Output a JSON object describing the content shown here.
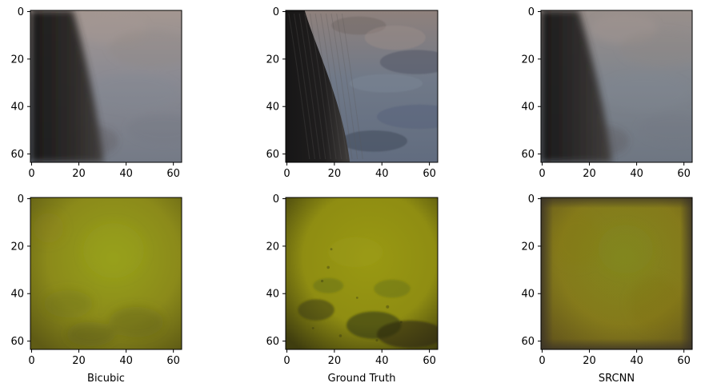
{
  "chart_data": [
    {
      "type": "heatmap",
      "title": "",
      "xlabel": "",
      "ylabel": "",
      "xlim": [
        -0.5,
        63.5
      ],
      "ylim": [
        63.5,
        -0.5
      ],
      "x_ticks": [
        0,
        20,
        40,
        60
      ],
      "y_ticks": [
        0,
        20,
        40,
        60
      ],
      "grid": false,
      "image": {
        "description_colors": [
          "#3e3b39",
          "#2b2826",
          "#6e6765",
          "#8c8582",
          "#7b8290",
          "#4a4846"
        ],
        "edge_shape": "soft-dark-diagonal",
        "split_top": 18,
        "split_bottom": 31,
        "dark_color": "#2b2826",
        "light_color": "#8a8a92",
        "top_tint": "#a49791",
        "bottom_tint": "#747a86"
      }
    },
    {
      "type": "heatmap",
      "title": "",
      "xlabel": "",
      "ylabel": "",
      "xlim": [
        -0.5,
        63.5
      ],
      "ylim": [
        63.5,
        -0.5
      ],
      "x_ticks": [
        0,
        20,
        40,
        60
      ],
      "y_ticks": [
        0,
        20,
        40,
        60
      ],
      "grid": false,
      "image": {
        "description_colors": [
          "#2c2827",
          "#181616",
          "#6b6464",
          "#8b8989",
          "#5f6779",
          "#3f3e3e"
        ],
        "edge_shape": "sharp-dark-diagonal",
        "split_top": 8,
        "split_bottom": 27,
        "dark_color": "#1f1d1d",
        "light_color": "#707988",
        "top_tint": "#8f817c",
        "bottom_tint": "#616c7f"
      }
    },
    {
      "type": "heatmap",
      "title": "",
      "xlabel": "",
      "ylabel": "",
      "xlim": [
        -0.5,
        63.5
      ],
      "ylim": [
        63.5,
        -0.5
      ],
      "x_ticks": [
        0,
        20,
        40,
        60
      ],
      "y_ticks": [
        0,
        20,
        40,
        60
      ],
      "grid": false,
      "image": {
        "description_colors": [
          "#34302f",
          "#292625",
          "#7a7474",
          "#8c8888",
          "#767f88",
          "#3e3c3b"
        ],
        "edge_shape": "soft-dark-diagonal",
        "split_top": 16,
        "split_bottom": 30,
        "dark_color": "#2e2b2a",
        "light_color": "#80858d",
        "top_tint": "#998f8b",
        "bottom_tint": "#6e7682"
      }
    },
    {
      "type": "heatmap",
      "title": "",
      "xlabel": "Bicubic",
      "ylabel": "",
      "xlim": [
        -0.5,
        63.5
      ],
      "ylim": [
        63.5,
        -0.5
      ],
      "x_ticks": [
        0,
        20,
        40,
        60
      ],
      "y_ticks": [
        0,
        20,
        40,
        60
      ],
      "grid": false,
      "image": {
        "description_colors": [
          "#8f8b1c",
          "#9ba418",
          "#7f7d18",
          "#6a6617",
          "#5d5a16"
        ],
        "base_color": "#8b8a1a",
        "center_color": "#97a11a",
        "dark_color": "#5f5b15",
        "spot_color": "#6d7a1c"
      }
    },
    {
      "type": "heatmap",
      "title": "",
      "xlabel": "Ground Truth",
      "ylabel": "",
      "xlim": [
        -0.5,
        63.5
      ],
      "ylim": [
        63.5,
        -0.5
      ],
      "x_ticks": [
        0,
        20,
        40,
        60
      ],
      "y_ticks": [
        0,
        20,
        40,
        60
      ],
      "grid": false,
      "image": {
        "description_colors": [
          "#9a9214",
          "#878312",
          "#5b6114",
          "#2d2e0f",
          "#75720f"
        ],
        "base_color": "#8f8d12",
        "center_color": "#999912",
        "dark_color": "#3f3d0f",
        "spot_color": "#5a6915"
      }
    },
    {
      "type": "heatmap",
      "title": "",
      "xlabel": "SRCNN",
      "ylabel": "",
      "xlim": [
        -0.5,
        63.5
      ],
      "ylim": [
        63.5,
        -0.5
      ],
      "x_ticks": [
        0,
        20,
        40,
        60
      ],
      "y_ticks": [
        0,
        20,
        40,
        60
      ],
      "grid": false,
      "image": {
        "description_colors": [
          "#969b1b",
          "#a89d12",
          "#8a7914",
          "#5a4d26",
          "#2f2a25"
        ],
        "base_color": "#9e9216",
        "center_color": "#9ba318",
        "dark_color": "#6f5f17",
        "border_color": "#3a3329"
      }
    }
  ]
}
